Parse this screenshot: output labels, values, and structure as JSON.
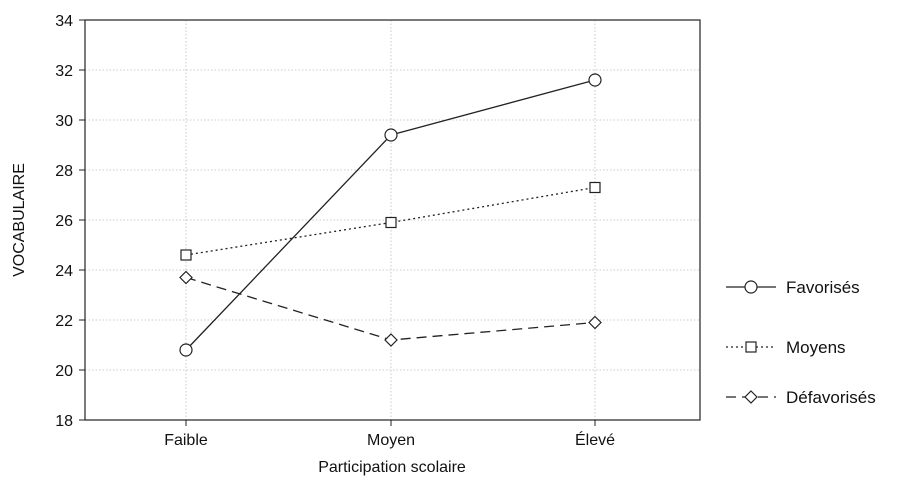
{
  "chart_data": {
    "type": "line",
    "title": "",
    "xlabel": "Participation scolaire",
    "ylabel": "VOCABULAIRE",
    "categories": [
      "Faible",
      "Moyen",
      "Élevé"
    ],
    "ylim": [
      18,
      34
    ],
    "yticks": [
      18,
      20,
      22,
      24,
      26,
      28,
      30,
      32,
      34
    ],
    "grid": true,
    "legend_position": "right",
    "series": [
      {
        "name": "Favorisés",
        "values": [
          20.8,
          29.4,
          31.6
        ],
        "marker": "circle",
        "line_style": "solid"
      },
      {
        "name": "Moyens",
        "values": [
          24.6,
          25.9,
          27.3
        ],
        "marker": "square",
        "line_style": "dotted"
      },
      {
        "name": "Défavorisés",
        "values": [
          23.7,
          21.2,
          21.9
        ],
        "marker": "diamond",
        "line_style": "dashed"
      }
    ]
  }
}
